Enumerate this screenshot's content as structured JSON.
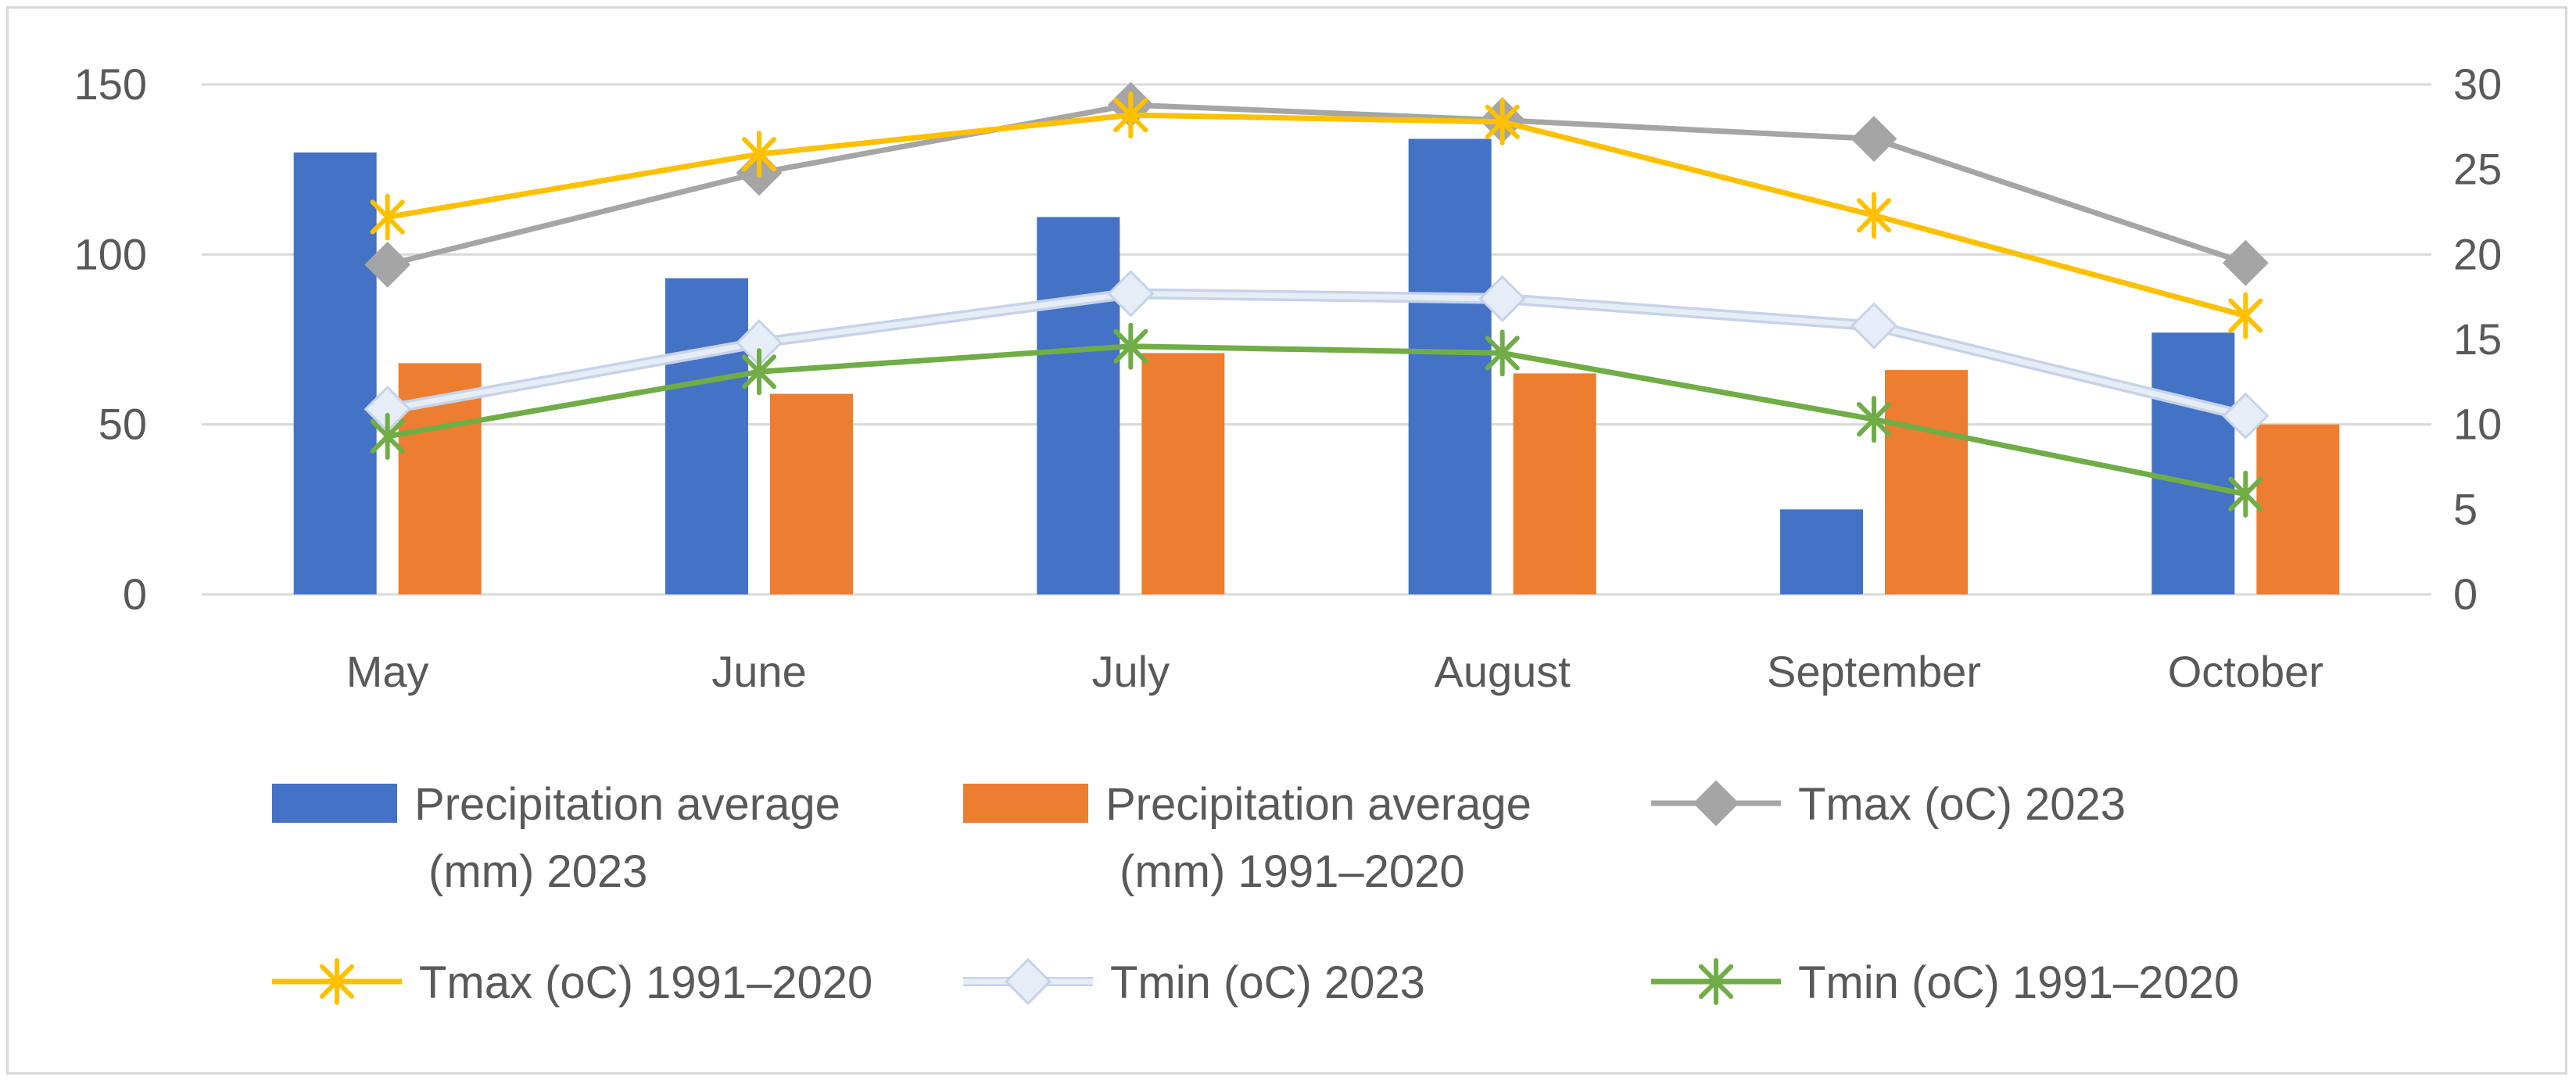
{
  "chart_data": {
    "type": "bar",
    "title": "",
    "xlabel": "",
    "ylabel": "",
    "categories": [
      "May",
      "June",
      "July",
      "August",
      "September",
      "October"
    ],
    "y_left": {
      "lim": [
        0,
        150
      ],
      "ticks": [
        "0",
        "50",
        "100",
        "150"
      ],
      "tick_values": [
        0,
        50,
        100,
        150
      ]
    },
    "y_right": {
      "lim": [
        0,
        30
      ],
      "ticks": [
        "0",
        "5",
        "10",
        "15",
        "20",
        "25",
        "30"
      ],
      "tick_values": [
        0,
        5,
        10,
        15,
        20,
        25,
        30
      ]
    },
    "grid": true,
    "legend_position": "bottom",
    "bar_series": [
      {
        "name_lines": [
          "Precipitation average",
          "(mm) 2023"
        ],
        "color": "#4472C4",
        "axis": "left",
        "values": [
          130,
          93,
          111,
          134,
          25,
          77
        ]
      },
      {
        "name_lines": [
          "Precipitation average",
          "(mm) 1991–2020"
        ],
        "color": "#ED7D31",
        "axis": "left",
        "values": [
          68,
          59,
          71,
          65,
          66,
          50
        ]
      }
    ],
    "line_series": [
      {
        "name": "Tmax (oC) 2023",
        "color": "#A5A5A5",
        "marker": "diamond",
        "axis": "right",
        "values": [
          19.4,
          24.8,
          28.8,
          27.9,
          26.8,
          19.5
        ]
      },
      {
        "name": "Tmax (oC) 1991–2020",
        "color": "#FFC000",
        "marker": "asterisk",
        "axis": "right",
        "values": [
          22.2,
          25.9,
          28.2,
          27.8,
          22.3,
          16.4
        ]
      },
      {
        "name": "Tmin (oC) 2023",
        "color": "#E7EDF6",
        "marker": "diamond-light",
        "axis": "right",
        "values": [
          10.9,
          14.8,
          17.7,
          17.4,
          15.8,
          10.5
        ]
      },
      {
        "name": "Tmin (oC) 1991–2020",
        "color": "#70AD47",
        "marker": "asterisk",
        "axis": "right",
        "values": [
          9.3,
          13.1,
          14.6,
          14.2,
          10.3,
          5.9
        ]
      }
    ]
  }
}
